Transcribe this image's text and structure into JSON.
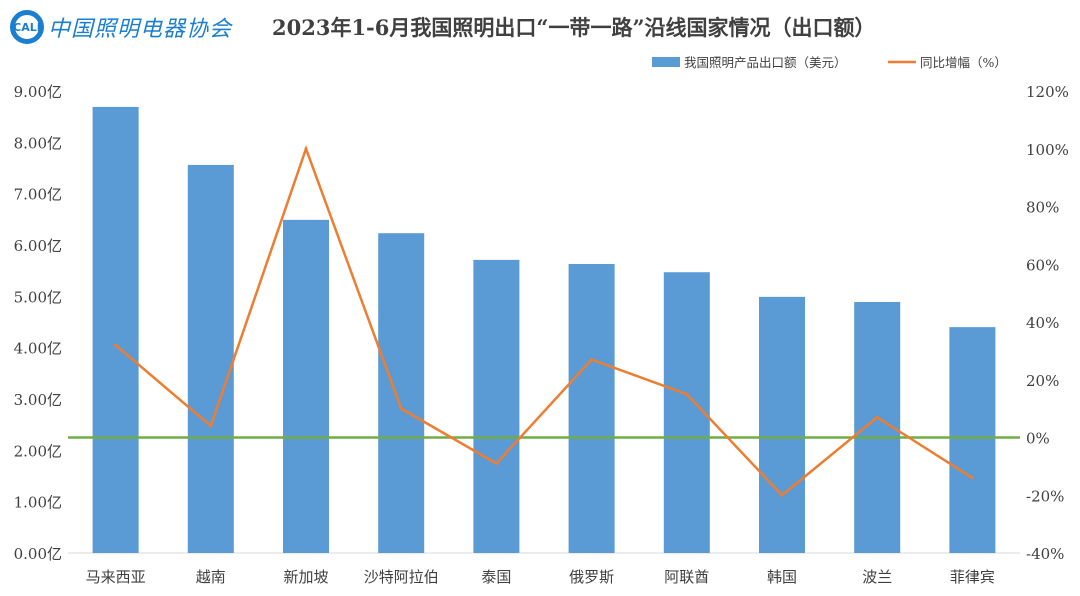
{
  "logo": {
    "mark": "CALI",
    "name": "中国照明电器协会"
  },
  "chart_data": {
    "type": "bar+line",
    "title": "2023年1-6月我国照明出口“一带一路”沿线国家情况（出口额）",
    "categories": [
      "马来西亚",
      "越南",
      "新加坡",
      "沙特阿拉伯",
      "泰国",
      "俄罗斯",
      "阿联酋",
      "韩国",
      "波兰",
      "菲律宾"
    ],
    "series": [
      {
        "name": "我国照明产品出口额（美元）",
        "type": "bar",
        "axis": "left",
        "color": "#5b9bd5",
        "values": [
          8.69,
          7.56,
          6.49,
          6.23,
          5.71,
          5.63,
          5.47,
          4.99,
          4.89,
          4.4
        ]
      },
      {
        "name": "同比增幅（%）",
        "type": "line",
        "axis": "right",
        "color": "#ed7d31",
        "values": [
          32,
          4,
          100,
          10,
          -9,
          27,
          15,
          -20,
          7,
          -14
        ]
      }
    ],
    "left_axis": {
      "ylim": [
        0,
        9
      ],
      "ticks": [
        "0.00亿",
        "1.00亿",
        "2.00亿",
        "3.00亿",
        "4.00亿",
        "5.00亿",
        "6.00亿",
        "7.00亿",
        "8.00亿",
        "9.00亿"
      ]
    },
    "right_axis": {
      "ylim": [
        -40,
        120
      ],
      "ticks": [
        "-40%",
        "-20%",
        "0%",
        "20%",
        "40%",
        "60%",
        "80%",
        "100%",
        "120%"
      ]
    },
    "zero_line_color": "#70ad47",
    "legend_position": "top-right",
    "grid": false
  }
}
